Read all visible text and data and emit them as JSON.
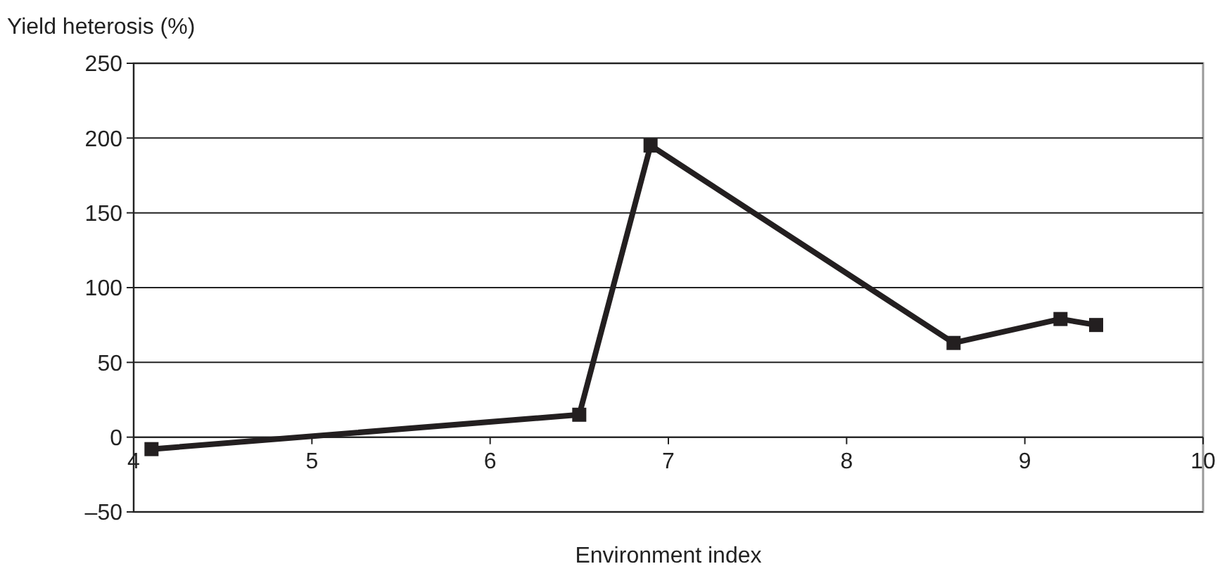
{
  "chart_data": {
    "type": "line",
    "ylabel": "Yield heterosis (%)",
    "xlabel": "Environment index",
    "x": [
      4.1,
      6.5,
      6.9,
      8.6,
      9.2,
      9.4
    ],
    "series": [
      {
        "color": "#231f20",
        "values": [
          -8,
          15,
          195,
          63,
          79,
          75
        ]
      }
    ],
    "xlim": [
      4,
      10
    ],
    "xticks": [
      4,
      5,
      6,
      7,
      8,
      9,
      10
    ],
    "ylim": [
      -50,
      250
    ],
    "yticks": [
      {
        "value": -50,
        "label": "–50"
      },
      0,
      50,
      100,
      150,
      200,
      250
    ],
    "grid": "y",
    "marker": "square",
    "line_style": "solid"
  }
}
